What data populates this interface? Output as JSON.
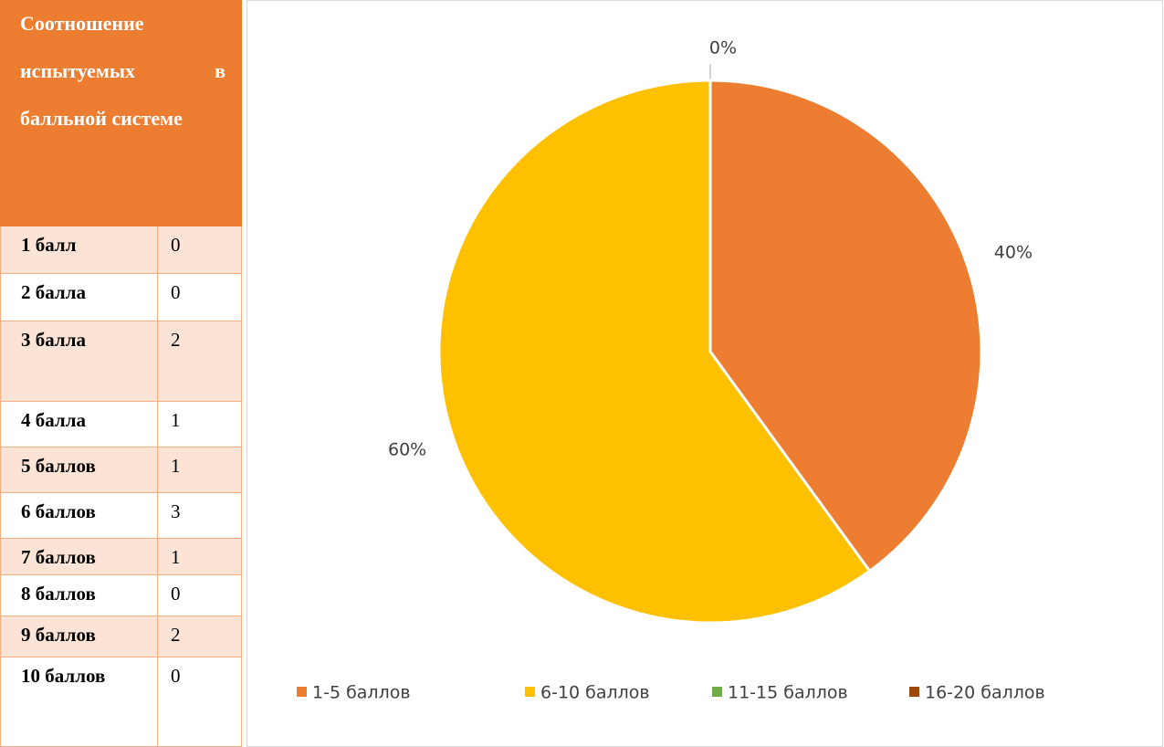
{
  "table": {
    "title": "Соотношение испытуемых в балльной системе",
    "rows": [
      [
        "1 балл",
        "0"
      ],
      [
        "2 балла",
        "0"
      ],
      [
        "3 балла",
        "2"
      ],
      [
        "4 балла",
        "1"
      ],
      [
        "5 баллов",
        "1"
      ],
      [
        "6 баллов",
        "3"
      ],
      [
        "7 баллов",
        "1"
      ],
      [
        "8 баллов",
        "0"
      ],
      [
        "9 баллов",
        "2"
      ],
      [
        "10 баллов",
        "0"
      ]
    ]
  },
  "chart_data": {
    "type": "pie",
    "categories": [
      "1-5 баллов",
      "6-10 баллов",
      "11-15 баллов",
      "16-20 баллов"
    ],
    "values": [
      40,
      60,
      0,
      0
    ],
    "value_labels": [
      "40%",
      "60%",
      "0%",
      null
    ],
    "colors": [
      "#ED7D31",
      "#FFC000",
      "#70AD47",
      "#9E480E"
    ],
    "legend": "bottom"
  }
}
